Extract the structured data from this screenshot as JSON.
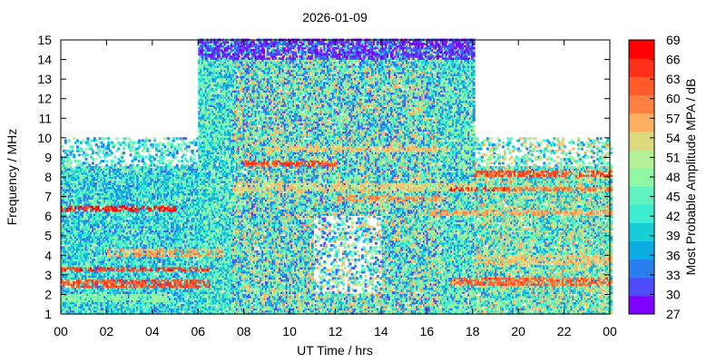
{
  "chart_data": {
    "type": "heatmap",
    "title": "2026-01-09",
    "xlabel": "UT Time / hrs",
    "ylabel": "Frequency / MHz",
    "xlim": [
      0,
      24
    ],
    "ylim": [
      1,
      15
    ],
    "x_ticks": [
      "00",
      "02",
      "04",
      "06",
      "08",
      "10",
      "12",
      "14",
      "16",
      "18",
      "20",
      "22",
      "00"
    ],
    "y_ticks": [
      "1",
      "2",
      "3",
      "4",
      "5",
      "6",
      "7",
      "8",
      "9",
      "10",
      "11",
      "12",
      "13",
      "14",
      "15"
    ],
    "colorbar": {
      "label": "Most Probable Amplitude MPA / dB",
      "ticks": [
        "27",
        "30",
        "33",
        "36",
        "39",
        "42",
        "45",
        "48",
        "51",
        "54",
        "57",
        "60",
        "63",
        "66",
        "69"
      ],
      "range": [
        27,
        69
      ],
      "colors": [
        "#8000ff",
        "#4e4dfc",
        "#2a7fef",
        "#0aace2",
        "#18cfd8",
        "#3eeed0",
        "#60f2c0",
        "#8ef8a4",
        "#b2f196",
        "#dcd87e",
        "#ffb060",
        "#ff8040",
        "#ff5a2a",
        "#ff3018",
        "#ff0000"
      ]
    },
    "coverage": [
      {
        "x": [
          0,
          6
        ],
        "y_max": 10,
        "min_range": [
          32,
          50
        ]
      },
      {
        "x": [
          6,
          7.5
        ],
        "y_max": 15,
        "min_range": [
          34,
          52
        ]
      },
      {
        "x": [
          7.5,
          16.5
        ],
        "y_max": 15,
        "min_range": [
          30,
          58
        ]
      },
      {
        "x": [
          16.5,
          18
        ],
        "y_max": 15,
        "min_range": [
          32,
          54
        ]
      },
      {
        "x": [
          18,
          24
        ],
        "y_max": 10,
        "min_range": [
          34,
          58
        ]
      }
    ],
    "bands": [
      {
        "x": [
          0,
          5
        ],
        "y": [
          6.2,
          6.5
        ],
        "value": 66
      },
      {
        "x": [
          0,
          6.5
        ],
        "y": [
          2.3,
          2.7
        ],
        "value": 63
      },
      {
        "x": [
          0,
          6.5
        ],
        "y": [
          3.2,
          3.4
        ],
        "value": 64
      },
      {
        "x": [
          2,
          7
        ],
        "y": [
          3.9,
          4.3
        ],
        "value": 57
      },
      {
        "x": [
          0,
          5
        ],
        "y": [
          1.6,
          2.0
        ],
        "value": 48
      },
      {
        "x": [
          7.5,
          18
        ],
        "y": [
          7.3,
          7.7
        ],
        "value": 54
      },
      {
        "x": [
          9,
          17
        ],
        "y": [
          9.2,
          9.6
        ],
        "value": 55
      },
      {
        "x": [
          8,
          12
        ],
        "y": [
          8.5,
          8.8
        ],
        "value": 63
      },
      {
        "x": [
          12,
          17
        ],
        "y": [
          6.7,
          7.0
        ],
        "value": 58
      },
      {
        "x": [
          17,
          19.5
        ],
        "y": [
          7.2,
          7.5
        ],
        "value": 66
      },
      {
        "x": [
          18,
          24
        ],
        "y": [
          8.0,
          8.3
        ],
        "value": 63
      },
      {
        "x": [
          19,
          24
        ],
        "y": [
          7.2,
          7.5
        ],
        "value": 60
      },
      {
        "x": [
          17,
          24
        ],
        "y": [
          2.4,
          2.8
        ],
        "value": 61
      },
      {
        "x": [
          18,
          24
        ],
        "y": [
          3.5,
          4.0
        ],
        "value": 55
      },
      {
        "x": [
          16,
          24
        ],
        "y": [
          6.0,
          6.3
        ],
        "value": 57
      },
      {
        "x": [
          5.5,
          18
        ],
        "y": [
          14.0,
          15.0
        ],
        "value": 30
      }
    ]
  }
}
